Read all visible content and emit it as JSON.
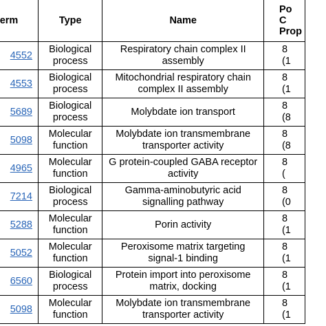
{
  "header": {
    "term": "erm",
    "type": "Type",
    "name": "Name",
    "prop_lines": [
      "Po",
      "C",
      "Prop"
    ]
  },
  "rows": [
    {
      "term": "4552",
      "type": [
        "Biological",
        "process"
      ],
      "name": "Respiratory chain complex II assembly",
      "prop": [
        "8",
        "(1"
      ]
    },
    {
      "term": "4553",
      "type": [
        "Biological",
        "process"
      ],
      "name": "Mitochondrial respiratory chain complex II assembly",
      "prop": [
        "8",
        "(1"
      ]
    },
    {
      "term": "5689",
      "type": [
        "Biological",
        "process"
      ],
      "name": "Molybdate ion transport",
      "prop": [
        "8",
        "(8"
      ]
    },
    {
      "term": "5098",
      "type": [
        "Molecular",
        "function"
      ],
      "name": "Molybdate ion transmembrane transporter activity",
      "prop": [
        "8",
        "(8"
      ]
    },
    {
      "term": "4965",
      "type": [
        "Molecular",
        "function"
      ],
      "name": "G protein-coupled GABA receptor activity",
      "prop": [
        "8",
        "("
      ]
    },
    {
      "term": "7214",
      "type": [
        "Biological",
        "process"
      ],
      "name": "Gamma-aminobutyric acid signalling pathway",
      "prop": [
        "8",
        "(0"
      ]
    },
    {
      "term": "5288",
      "type": [
        "Molecular",
        "function"
      ],
      "name": "Porin activity",
      "prop": [
        "8",
        "(1"
      ]
    },
    {
      "term": "5052",
      "type": [
        "Molecular",
        "function"
      ],
      "name": "Peroxisome matrix targeting signal-1 binding",
      "prop": [
        "8",
        "(1"
      ]
    },
    {
      "term": "6560",
      "type": [
        "Biological",
        "process"
      ],
      "name": "Protein import into peroxisome matrix, docking",
      "prop": [
        "8",
        "(1"
      ]
    },
    {
      "term": "5098",
      "type": [
        "Molecular",
        "function"
      ],
      "name": "Molybdate ion transmembrane transporter activity",
      "prop": [
        "8",
        "(1"
      ]
    }
  ],
  "colors": {
    "link": "#2a66b8",
    "border": "#000000"
  }
}
